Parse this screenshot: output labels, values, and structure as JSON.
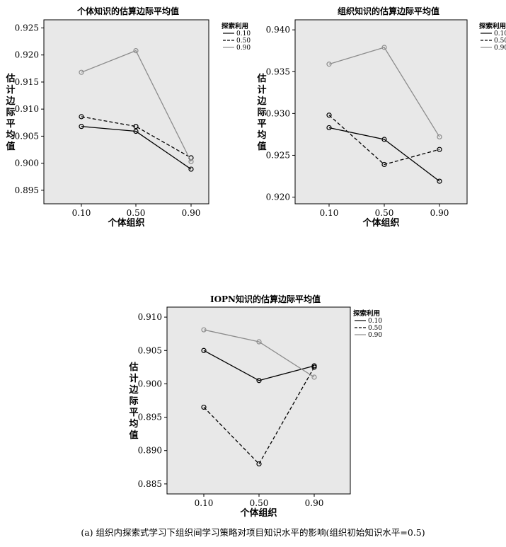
{
  "caption": "(a) 组织内探索式学习下组织间学习策略对项目知识水平的影响(组织初始知识水平=0.5)",
  "chart_data": [
    {
      "type": "line",
      "title": "个体知识的估算边际平均值",
      "xlabel": "个体组织",
      "ylabel": "估计边际平均值",
      "categories": [
        "0.10",
        "0.50",
        "0.90"
      ],
      "ylim": [
        0.8925,
        0.9265
      ],
      "yticks": [
        0.895,
        0.9,
        0.905,
        0.91,
        0.915,
        0.92,
        0.925
      ],
      "ytick_labels": [
        "0.895",
        "0.900",
        "0.905",
        "0.910",
        "0.915",
        "0.920",
        "0.925"
      ],
      "legend_title": "探索利用",
      "legend_position": "right",
      "series": [
        {
          "name": "0.10",
          "style": "solid",
          "color": "#000000",
          "values": [
            0.9068,
            0.9059,
            0.8989
          ]
        },
        {
          "name": "0.50",
          "style": "dashed",
          "color": "#000000",
          "values": [
            0.9086,
            0.9068,
            0.901
          ]
        },
        {
          "name": "0.90",
          "style": "solid",
          "color": "#8c8c8c",
          "values": [
            0.9168,
            0.9208,
            0.9003
          ]
        }
      ]
    },
    {
      "type": "line",
      "title": "组织知识的估算边际平均值",
      "xlabel": "个体组织",
      "ylabel": "估计边际平均值",
      "categories": [
        "0.10",
        "0.50",
        "0.90"
      ],
      "ylim": [
        0.9192,
        0.9412
      ],
      "yticks": [
        0.92,
        0.925,
        0.93,
        0.935,
        0.94
      ],
      "ytick_labels": [
        "0.920",
        "0.925",
        "0.930",
        "0.935",
        "0.940"
      ],
      "legend_title": "探索利用",
      "legend_position": "right",
      "series": [
        {
          "name": "0.10",
          "style": "solid",
          "color": "#000000",
          "values": [
            0.9283,
            0.9269,
            0.9219
          ]
        },
        {
          "name": "0.50",
          "style": "dashed",
          "color": "#000000",
          "values": [
            0.9298,
            0.9239,
            0.9257
          ]
        },
        {
          "name": "0.90",
          "style": "solid",
          "color": "#8c8c8c",
          "values": [
            0.9359,
            0.9379,
            0.9272
          ]
        }
      ]
    },
    {
      "type": "line",
      "title": "IOPN知识的估算边际平均值",
      "xlabel": "个体组织",
      "ylabel": "估计边际平均值",
      "categories": [
        "0.10",
        "0.50",
        "0.90"
      ],
      "ylim": [
        0.8835,
        0.9115
      ],
      "yticks": [
        0.885,
        0.89,
        0.895,
        0.9,
        0.905,
        0.91
      ],
      "ytick_labels": [
        "0.885",
        "0.890",
        "0.895",
        "0.900",
        "0.905",
        "0.910"
      ],
      "legend_title": "探索利用",
      "legend_position": "right",
      "series": [
        {
          "name": "0.10",
          "style": "solid",
          "color": "#000000",
          "values": [
            0.905,
            0.9005,
            0.9027
          ]
        },
        {
          "name": "0.50",
          "style": "dashed",
          "color": "#000000",
          "values": [
            0.8965,
            0.888,
            0.9025
          ]
        },
        {
          "name": "0.90",
          "style": "solid",
          "color": "#8c8c8c",
          "values": [
            0.9081,
            0.9063,
            0.901
          ]
        }
      ]
    }
  ]
}
